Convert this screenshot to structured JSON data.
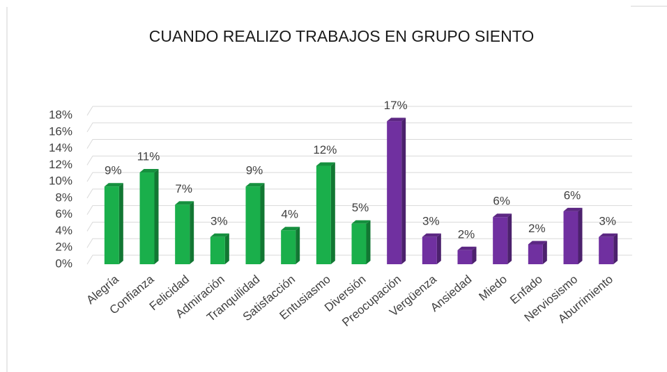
{
  "chart_data": {
    "type": "bar3d",
    "title": "CUANDO REALIZO TRABAJOS EN GRUPO SIENTO",
    "categories": [
      "Alegría",
      "Confianza",
      "Felicidad",
      "Admiración",
      "Tranquilidad",
      "Satisfacción",
      "Entusiasmo",
      "Diversión",
      "Preocupación",
      "Vergüenza",
      "Ansiedad",
      "Miedo",
      "Enfado",
      "Nerviosismo",
      "Aburrimiento"
    ],
    "values": [
      9.4,
      11.1,
      7.2,
      3.3,
      9.4,
      4.1,
      11.9,
      4.9,
      17.3,
      3.3,
      1.7,
      5.7,
      2.4,
      6.4,
      3.3
    ],
    "value_labels": [
      "9%",
      "11%",
      "7%",
      "3%",
      "9%",
      "4%",
      "12%",
      "5%",
      "17%",
      "3%",
      "2%",
      "6%",
      "2%",
      "6%",
      "3%"
    ],
    "colors": [
      "#1aaf4b",
      "#1aaf4b",
      "#1aaf4b",
      "#1aaf4b",
      "#1aaf4b",
      "#1aaf4b",
      "#1aaf4b",
      "#1aaf4b",
      "#7030a0",
      "#7030a0",
      "#7030a0",
      "#7030a0",
      "#7030a0",
      "#7030a0",
      "#7030a0"
    ],
    "ylim": [
      0,
      18
    ],
    "yticks": [
      {
        "value": 0,
        "label": "0%"
      },
      {
        "value": 2,
        "label": "2%"
      },
      {
        "value": 4,
        "label": "4%"
      },
      {
        "value": 6,
        "label": "6%"
      },
      {
        "value": 8,
        "label": "8%"
      },
      {
        "value": 10,
        "label": "10%"
      },
      {
        "value": 12,
        "label": "12%"
      },
      {
        "value": 14,
        "label": "14%"
      },
      {
        "value": 16,
        "label": "16%"
      },
      {
        "value": 18,
        "label": "18%"
      }
    ],
    "grid": true
  }
}
